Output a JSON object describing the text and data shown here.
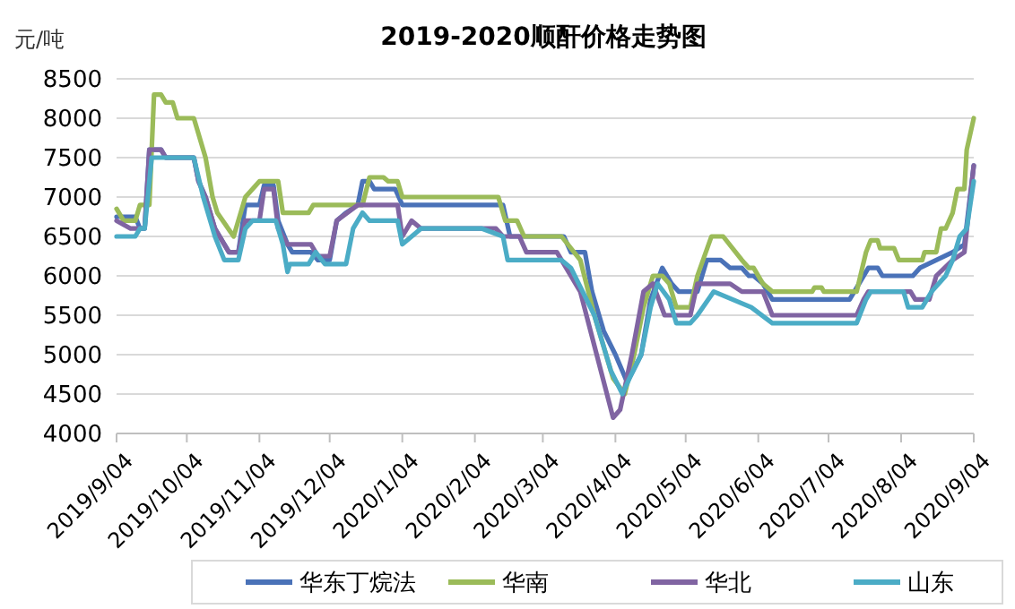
{
  "chart_data": {
    "type": "line",
    "title": "2019-2020顺酐价格走势图",
    "ylabel": "元/吨",
    "xlim": [
      "2019-09-04",
      "2020-09-04"
    ],
    "xticks": [
      {
        "value": "2019-09-04",
        "label": "2019/9/04"
      },
      {
        "value": "2019-10-04",
        "label": "2019/10/04"
      },
      {
        "value": "2019-11-04",
        "label": "2019/11/04"
      },
      {
        "value": "2019-12-04",
        "label": "2019/12/04"
      },
      {
        "value": "2020-01-04",
        "label": "2020/1/04"
      },
      {
        "value": "2020-02-04",
        "label": "2020/2/04"
      },
      {
        "value": "2020-03-04",
        "label": "2020/3/04"
      },
      {
        "value": "2020-04-04",
        "label": "2020/4/04"
      },
      {
        "value": "2020-05-04",
        "label": "2020/5/04"
      },
      {
        "value": "2020-06-04",
        "label": "2020/6/04"
      },
      {
        "value": "2020-07-04",
        "label": "2020/7/04"
      },
      {
        "value": "2020-08-04",
        "label": "2020/8/04"
      },
      {
        "value": "2020-09-04",
        "label": "2020/9/04"
      }
    ],
    "ylim": [
      4000,
      8500
    ],
    "yticks": [
      4000,
      4500,
      5000,
      5500,
      6000,
      6500,
      7000,
      7500,
      8000,
      8500
    ],
    "grid": "y",
    "legend": "bottom",
    "series": [
      {
        "name": "华东丁烷法",
        "color": "#4a72b8",
        "x": [
          "2019-09-04",
          "2019-09-12",
          "2019-09-14",
          "2019-09-16",
          "2019-09-18",
          "2019-09-23",
          "2019-09-25",
          "2019-10-07",
          "2019-10-09",
          "2019-10-12",
          "2019-10-16",
          "2019-10-20",
          "2019-10-22",
          "2019-10-26",
          "2019-10-29",
          "2019-11-04",
          "2019-11-06",
          "2019-11-10",
          "2019-11-12",
          "2019-11-16",
          "2019-11-18",
          "2019-11-26",
          "2019-11-29",
          "2019-12-04",
          "2019-12-07",
          "2019-12-11",
          "2019-12-16",
          "2019-12-18",
          "2019-12-21",
          "2019-12-23",
          "2020-01-01",
          "2020-01-04",
          "2020-02-16",
          "2020-02-19",
          "2020-03-13",
          "2020-03-16",
          "2020-03-22",
          "2020-03-25",
          "2020-03-30",
          "2020-04-04",
          "2020-04-09",
          "2020-04-15",
          "2020-04-19",
          "2020-04-24",
          "2020-04-28",
          "2020-05-01",
          "2020-05-09",
          "2020-05-13",
          "2020-05-19",
          "2020-05-23",
          "2020-05-28",
          "2020-05-31",
          "2020-06-02",
          "2020-06-06",
          "2020-06-10",
          "2020-07-13",
          "2020-07-17",
          "2020-07-21",
          "2020-07-25",
          "2020-07-27",
          "2020-08-09",
          "2020-08-12",
          "2020-08-19",
          "2020-08-26",
          "2020-08-31",
          "2020-09-02",
          "2020-09-04"
        ],
        "values": [
          6750,
          6750,
          6600,
          6600,
          7600,
          7600,
          7500,
          7500,
          7200,
          7000,
          6600,
          6400,
          6300,
          6300,
          6900,
          6900,
          7150,
          7150,
          6700,
          6400,
          6300,
          6300,
          6200,
          6200,
          6700,
          6800,
          6900,
          7200,
          7200,
          7100,
          7100,
          6900,
          6900,
          6500,
          6500,
          6300,
          6300,
          5800,
          5300,
          5000,
          4650,
          5000,
          5700,
          6100,
          5900,
          5800,
          5800,
          6200,
          6200,
          6100,
          6100,
          6000,
          6000,
          5900,
          5700,
          5700,
          5900,
          6100,
          6100,
          6000,
          6000,
          6100,
          6200,
          6300,
          6400,
          6900,
          7400
        ]
      },
      {
        "name": "华南",
        "color": "#9bbb59",
        "x": [
          "2019-09-04",
          "2019-09-07",
          "2019-09-12",
          "2019-09-14",
          "2019-09-18",
          "2019-09-20",
          "2019-09-23",
          "2019-09-25",
          "2019-09-28",
          "2019-09-30",
          "2019-10-07",
          "2019-10-12",
          "2019-10-15",
          "2019-10-17",
          "2019-10-24",
          "2019-10-29",
          "2019-11-04",
          "2019-11-12",
          "2019-11-14",
          "2019-11-25",
          "2019-11-27",
          "2019-12-18",
          "2019-12-21",
          "2019-12-27",
          "2019-12-29",
          "2020-01-02",
          "2020-01-04",
          "2020-02-14",
          "2020-02-17",
          "2020-02-22",
          "2020-02-25",
          "2020-03-12",
          "2020-03-20",
          "2020-03-26",
          "2020-04-03",
          "2020-04-08",
          "2020-04-12",
          "2020-04-16",
          "2020-04-20",
          "2020-04-24",
          "2020-04-27",
          "2020-04-30",
          "2020-05-06",
          "2020-05-09",
          "2020-05-15",
          "2020-05-20",
          "2020-05-28",
          "2020-05-31",
          "2020-06-02",
          "2020-06-06",
          "2020-06-10",
          "2020-06-27",
          "2020-06-28",
          "2020-07-01",
          "2020-07-02",
          "2020-07-16",
          "2020-07-20",
          "2020-07-22",
          "2020-07-25",
          "2020-07-26",
          "2020-08-01",
          "2020-08-03",
          "2020-08-13",
          "2020-08-14",
          "2020-08-19",
          "2020-08-21",
          "2020-08-23",
          "2020-08-26",
          "2020-08-28",
          "2020-08-31",
          "2020-09-01",
          "2020-09-04"
        ],
        "values": [
          6850,
          6700,
          6700,
          6900,
          6900,
          8300,
          8300,
          8200,
          8200,
          8000,
          8000,
          7500,
          7000,
          6800,
          6500,
          7000,
          7200,
          7200,
          6800,
          6800,
          6900,
          6900,
          7250,
          7250,
          7200,
          7200,
          7000,
          7000,
          6700,
          6700,
          6500,
          6500,
          6200,
          5500,
          4700,
          4500,
          5000,
          5600,
          6000,
          6000,
          5900,
          5600,
          5600,
          6000,
          6500,
          6500,
          6200,
          6100,
          6100,
          5900,
          5800,
          5800,
          5850,
          5850,
          5800,
          5800,
          6300,
          6450,
          6450,
          6350,
          6350,
          6200,
          6200,
          6300,
          6300,
          6600,
          6600,
          6800,
          7100,
          7100,
          7600,
          8000
        ]
      },
      {
        "name": "华北",
        "color": "#8064a2",
        "x": [
          "2019-09-04",
          "2019-09-10",
          "2019-09-16",
          "2019-09-18",
          "2019-09-23",
          "2019-09-25",
          "2019-10-07",
          "2019-10-09",
          "2019-10-12",
          "2019-10-16",
          "2019-10-20",
          "2019-10-22",
          "2019-10-26",
          "2019-10-29",
          "2019-11-04",
          "2019-11-06",
          "2019-11-10",
          "2019-11-12",
          "2019-11-16",
          "2019-11-26",
          "2019-11-29",
          "2019-12-04",
          "2019-12-07",
          "2019-12-16",
          "2020-01-02",
          "2020-01-04",
          "2020-01-08",
          "2020-01-12",
          "2020-02-13",
          "2020-02-16",
          "2020-02-23",
          "2020-02-26",
          "2020-03-10",
          "2020-03-20",
          "2020-03-27",
          "2020-04-03",
          "2020-04-06",
          "2020-04-11",
          "2020-04-16",
          "2020-04-20",
          "2020-04-25",
          "2020-05-06",
          "2020-05-09",
          "2020-05-23",
          "2020-05-28",
          "2020-06-06",
          "2020-06-10",
          "2020-07-16",
          "2020-07-19",
          "2020-07-21",
          "2020-08-08",
          "2020-08-10",
          "2020-08-16",
          "2020-08-19",
          "2020-08-26",
          "2020-08-31",
          "2020-09-04"
        ],
        "values": [
          6700,
          6600,
          6600,
          7600,
          7600,
          7500,
          7500,
          7200,
          7000,
          6600,
          6400,
          6300,
          6300,
          6700,
          6700,
          7100,
          7100,
          6600,
          6400,
          6400,
          6250,
          6250,
          6700,
          6900,
          6900,
          6500,
          6700,
          6600,
          6600,
          6500,
          6500,
          6300,
          6300,
          5800,
          5000,
          4200,
          4300,
          5000,
          5800,
          5900,
          5500,
          5500,
          5900,
          5900,
          5800,
          5800,
          5500,
          5500,
          5700,
          5800,
          5800,
          5700,
          5700,
          6000,
          6200,
          6300,
          7400
        ]
      },
      {
        "name": "山东",
        "color": "#4bacc6",
        "x": [
          "2019-09-04",
          "2019-09-12",
          "2019-09-14",
          "2019-09-16",
          "2019-09-19",
          "2019-10-07",
          "2019-10-11",
          "2019-10-16",
          "2019-10-20",
          "2019-10-26",
          "2019-10-29",
          "2019-11-01",
          "2019-11-11",
          "2019-11-14",
          "2019-11-16",
          "2019-11-17",
          "2019-11-25",
          "2019-11-28",
          "2019-12-02",
          "2019-12-11",
          "2019-12-14",
          "2019-12-18",
          "2019-12-21",
          "2020-01-02",
          "2020-01-04",
          "2020-01-08",
          "2020-01-12",
          "2020-02-07",
          "2020-02-16",
          "2020-02-18",
          "2020-03-12",
          "2020-03-16",
          "2020-03-26",
          "2020-04-02",
          "2020-04-07",
          "2020-04-10",
          "2020-04-15",
          "2020-04-19",
          "2020-04-22",
          "2020-04-27",
          "2020-04-30",
          "2020-05-06",
          "2020-05-09",
          "2020-05-16",
          "2020-06-01",
          "2020-06-10",
          "2020-07-16",
          "2020-07-20",
          "2020-07-22",
          "2020-08-05",
          "2020-08-07",
          "2020-08-13",
          "2020-08-17",
          "2020-08-23",
          "2020-08-26",
          "2020-08-29",
          "2020-09-01",
          "2020-09-04"
        ],
        "values": [
          6500,
          6500,
          6600,
          6600,
          7500,
          7500,
          7000,
          6500,
          6200,
          6200,
          6600,
          6700,
          6700,
          6400,
          6050,
          6150,
          6150,
          6300,
          6150,
          6150,
          6600,
          6800,
          6700,
          6700,
          6400,
          6500,
          6600,
          6600,
          6500,
          6200,
          6200,
          6100,
          5500,
          4800,
          4500,
          4700,
          5000,
          5600,
          5900,
          5700,
          5400,
          5400,
          5500,
          5800,
          5600,
          5400,
          5400,
          5700,
          5800,
          5800,
          5600,
          5600,
          5800,
          6000,
          6200,
          6500,
          6600,
          7200
        ]
      }
    ]
  }
}
